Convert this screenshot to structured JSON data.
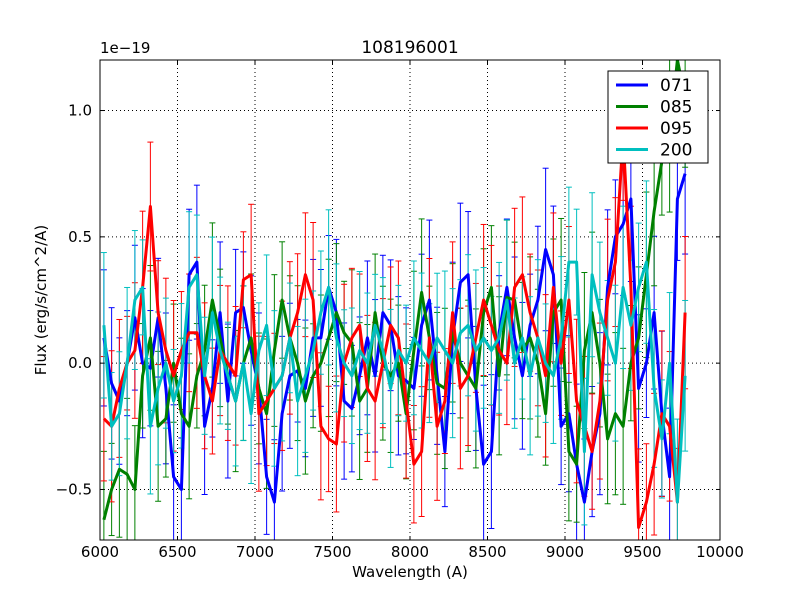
{
  "chart_data": {
    "type": "line",
    "title": "108196001",
    "xlabel": "Wavelength (A)",
    "ylabel": "Flux (erg/s/cm^2/A)",
    "offset_label": "1e−19",
    "xlim": [
      6000,
      10000
    ],
    "ylim": [
      -0.7,
      1.2
    ],
    "grid": true,
    "legend_position": "top-right",
    "xticks": [
      {
        "value": 6000,
        "label": "6000"
      },
      {
        "value": 6500,
        "label": "6500"
      },
      {
        "value": 7000,
        "label": "7000"
      },
      {
        "value": 7500,
        "label": "7500"
      },
      {
        "value": 8000,
        "label": "8000"
      },
      {
        "value": 8500,
        "label": "8500"
      },
      {
        "value": 9000,
        "label": "9000"
      },
      {
        "value": 9500,
        "label": "9500"
      },
      {
        "value": 10000,
        "label": "10000"
      }
    ],
    "yticks": [
      {
        "value": -0.5,
        "label": "−0.5"
      },
      {
        "value": 0.0,
        "label": "0.0"
      },
      {
        "value": 0.5,
        "label": "0.5"
      },
      {
        "value": 1.0,
        "label": "1.0"
      }
    ],
    "x_start": 6025,
    "x_step": 50,
    "series": [
      {
        "name": "071",
        "color": "#0000ff",
        "values": [
          0.1,
          -0.08,
          -0.15,
          0.0,
          0.18,
          0.0,
          -0.02,
          0.18,
          -0.1,
          -0.45,
          -0.5,
          0.35,
          0.4,
          -0.25,
          -0.1,
          0.2,
          -0.15,
          0.2,
          0.22,
          0.05,
          -0.1,
          -0.45,
          -0.55,
          -0.2,
          -0.05,
          -0.03,
          -0.1,
          0.1,
          0.1,
          0.3,
          0.2,
          -0.15,
          -0.18,
          -0.05,
          0.1,
          -0.05,
          0.2,
          0.15,
          -0.05,
          -0.07,
          -0.1,
          0.15,
          0.25,
          -0.05,
          -0.35,
          0.1,
          0.32,
          0.35,
          -0.1,
          -0.4,
          -0.35,
          0.12,
          0.3,
          0.1,
          -0.05,
          0.15,
          0.25,
          0.45,
          0.35,
          -0.25,
          -0.2,
          -0.4,
          -0.55,
          -0.35,
          -0.2,
          0.3,
          0.5,
          0.55,
          0.65,
          -0.1,
          0.0,
          0.2,
          -0.2,
          -0.45,
          0.65,
          0.75
        ]
      },
      {
        "name": "085",
        "color": "#008000",
        "values": [
          -0.62,
          -0.5,
          -0.42,
          -0.44,
          -0.5,
          -0.05,
          0.1,
          -0.25,
          -0.22,
          0.0,
          -0.2,
          -0.25,
          -0.05,
          0.05,
          0.25,
          0.1,
          -0.05,
          -0.15,
          0.0,
          0.1,
          -0.1,
          -0.2,
          0.05,
          0.25,
          0.1,
          0.0,
          -0.15,
          -0.05,
          0.0,
          0.1,
          0.2,
          0.12,
          0.08,
          -0.15,
          -0.1,
          0.2,
          0.0,
          -0.05,
          0.0,
          -0.2,
          0.05,
          0.28,
          0.1,
          -0.08,
          -0.1,
          0.12,
          0.0,
          -0.05,
          -0.1,
          0.2,
          0.3,
          -0.05,
          0.26,
          0.25,
          0.05,
          0.1,
          0.0,
          -0.2,
          0.2,
          0.25,
          -0.35,
          -0.4,
          0.05,
          0.2,
          0.0,
          -0.3,
          -0.2,
          -0.25,
          0.0,
          0.1,
          0.35,
          0.6,
          0.8,
          0.9,
          1.2,
          1.05
        ]
      },
      {
        "name": "095",
        "color": "#ff0000",
        "values": [
          -0.22,
          -0.25,
          -0.1,
          0.0,
          0.05,
          0.3,
          0.62,
          0.2,
          0.05,
          -0.05,
          0.05,
          0.12,
          0.12,
          -0.05,
          -0.15,
          0.05,
          0.0,
          -0.05,
          0.33,
          0.35,
          -0.2,
          -0.15,
          -0.1,
          -0.05,
          0.1,
          0.2,
          0.35,
          0.25,
          -0.25,
          -0.3,
          -0.32,
          0.0,
          0.1,
          0.15,
          -0.1,
          -0.15,
          0.0,
          0.15,
          0.1,
          -0.15,
          -0.4,
          -0.35,
          0.1,
          -0.25,
          -0.15,
          0.2,
          -0.1,
          -0.05,
          0.1,
          0.25,
          0.15,
          0.05,
          0.0,
          0.3,
          0.35,
          0.2,
          0.1,
          -0.05,
          0.3,
          0.0,
          0.25,
          -0.15,
          -0.25,
          -0.35,
          -0.15,
          0.25,
          0.4,
          0.9,
          0.3,
          -0.65,
          -0.55,
          -0.4,
          -0.2,
          -0.25,
          -0.55,
          0.2
        ]
      },
      {
        "name": "200",
        "color": "#00bfbf",
        "values": [
          0.15,
          -0.25,
          -0.2,
          0.0,
          0.25,
          0.3,
          -0.25,
          -0.1,
          0.0,
          -0.15,
          -0.05,
          0.3,
          0.35,
          -0.05,
          0.2,
          0.05,
          -0.05,
          -0.15,
          0.0,
          -0.2,
          0.05,
          0.15,
          -0.1,
          -0.05,
          0.1,
          -0.15,
          -0.05,
          0.05,
          0.2,
          0.3,
          0.1,
          0.0,
          -0.05,
          0.05,
          0.0,
          0.15,
          0.05,
          -0.1,
          0.05,
          0.0,
          0.1,
          0.05,
          0.0,
          0.1,
          0.05,
          0.0,
          0.12,
          0.15,
          0.05,
          0.1,
          0.05,
          0.1,
          0.25,
          0.0,
          0.1,
          -0.05,
          0.1,
          0.0,
          -0.05,
          0.1,
          0.4,
          0.4,
          -0.35,
          0.35,
          0.2,
          0.1,
          0.0,
          0.3,
          0.15,
          0.3,
          0.4,
          -0.1,
          -0.3,
          0.0,
          -0.55,
          -0.05
        ]
      }
    ]
  }
}
